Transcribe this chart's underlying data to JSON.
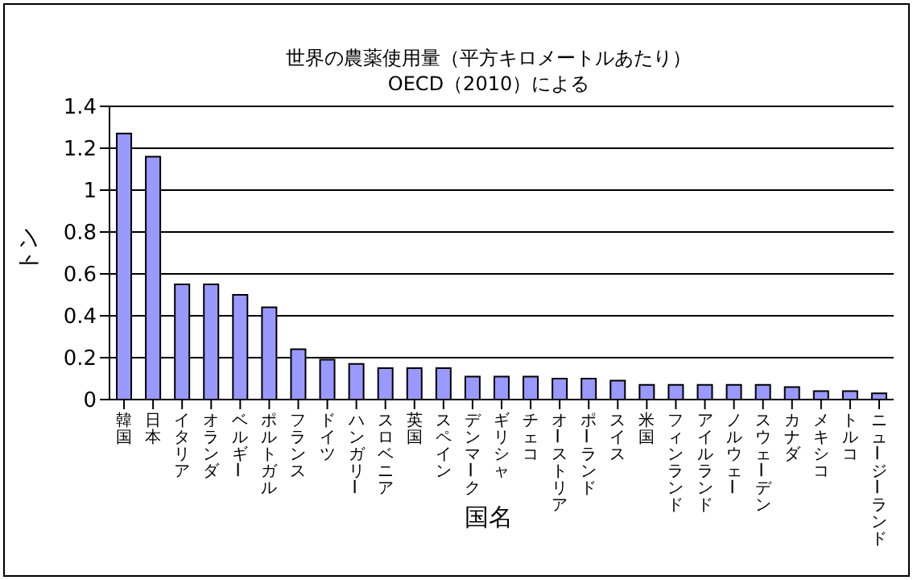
{
  "chart_data": {
    "type": "bar",
    "title": "世界の農薬使用量（平方キロメートルあたり）",
    "subtitle": "OECD（2010）による",
    "xlabel": "国名",
    "ylabel": "トン",
    "categories": [
      "韓国",
      "日本",
      "イタリア",
      "オランダ",
      "ベルギー",
      "ポルトガル",
      "フランス",
      "ドイツ",
      "ハンガリー",
      "スロベニア",
      "英国",
      "スペイン",
      "デンマーク",
      "ギリシャ",
      "チェコ",
      "オーストリア",
      "ポーランド",
      "スイス",
      "米国",
      "フィンランド",
      "アイルランド",
      "ノルウェー",
      "スウェーデン",
      "カナダ",
      "メキシコ",
      "トルコ",
      "ニュージーランド"
    ],
    "values": [
      1.27,
      1.16,
      0.55,
      0.55,
      0.5,
      0.44,
      0.24,
      0.19,
      0.17,
      0.15,
      0.15,
      0.15,
      0.11,
      0.11,
      0.11,
      0.1,
      0.1,
      0.09,
      0.07,
      0.07,
      0.07,
      0.07,
      0.07,
      0.06,
      0.04,
      0.04,
      0.03
    ],
    "color": "#9999ff",
    "ylim": [
      0,
      1.4
    ],
    "yticks": [
      0,
      0.2,
      0.4,
      0.6,
      0.8,
      1,
      1.2,
      1.4
    ],
    "grid": "y"
  }
}
